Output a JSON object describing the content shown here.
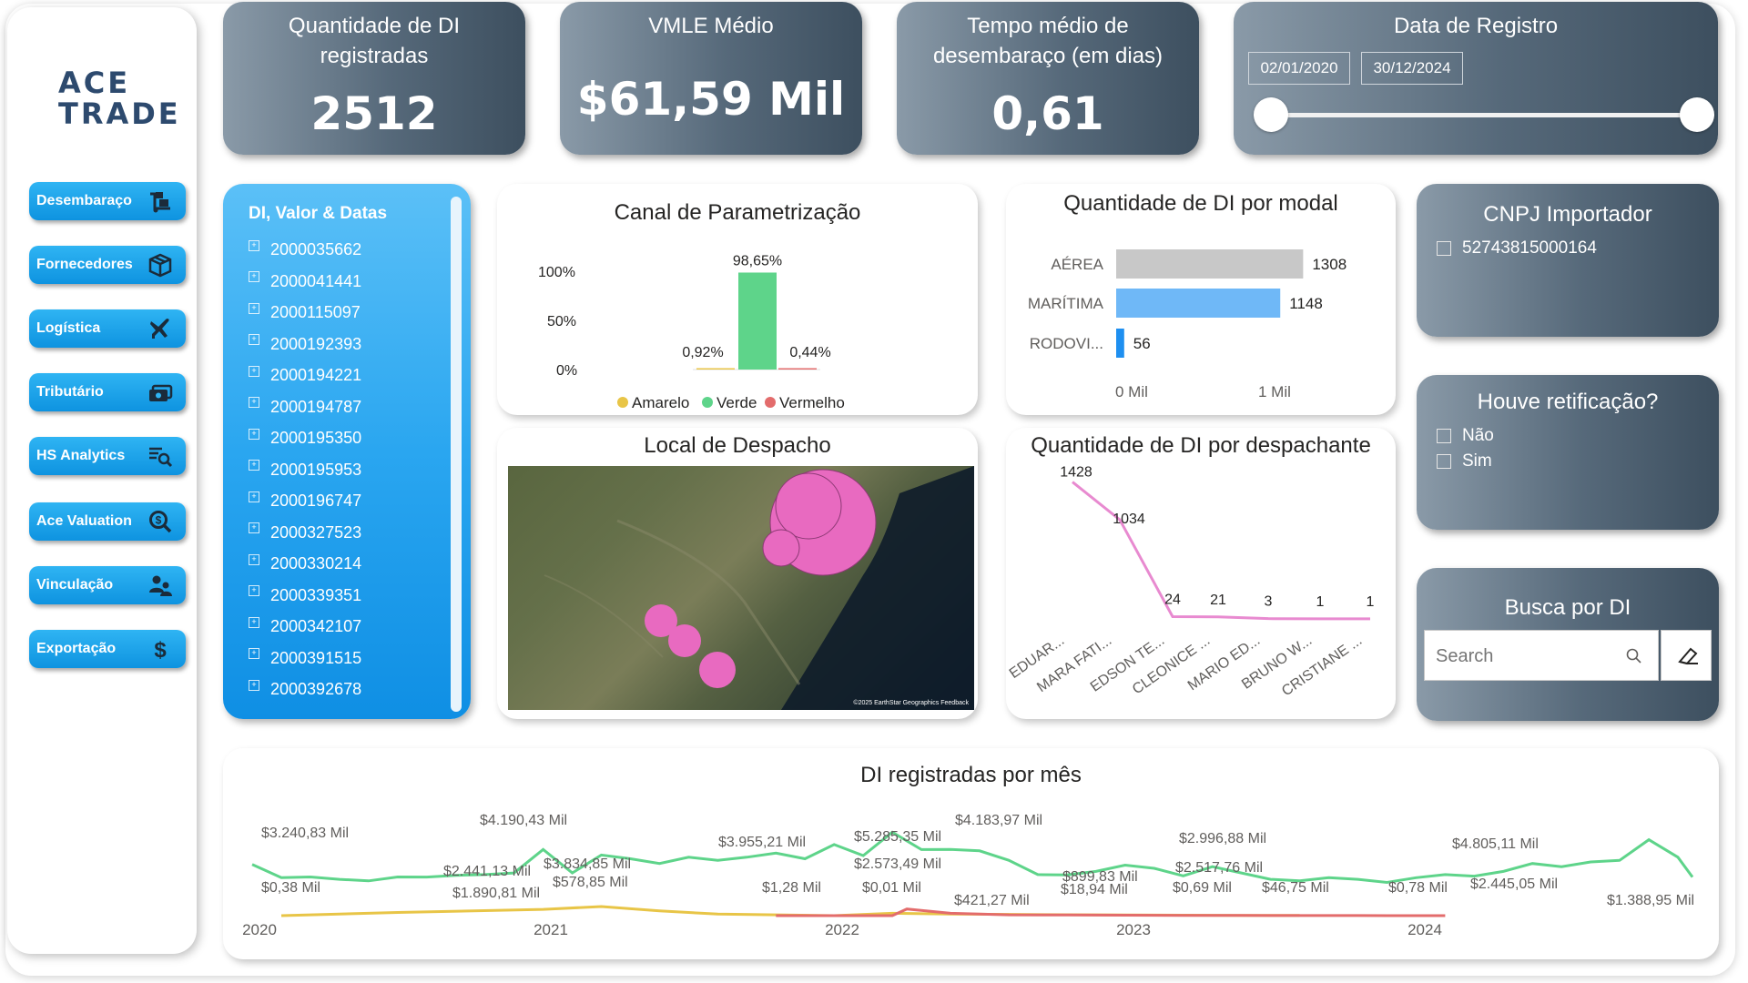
{
  "logo": {
    "line1": "ACE",
    "line2": "TRADE"
  },
  "nav": [
    {
      "label": "Desembaraço",
      "icon": "boxes-dolly-icon"
    },
    {
      "label": "Fornecedores",
      "icon": "package-icon"
    },
    {
      "label": "Logística",
      "icon": "airplane-icon"
    },
    {
      "label": "Tributário",
      "icon": "money-bill-icon"
    },
    {
      "label": "HS Analytics",
      "icon": "list-search-icon"
    },
    {
      "label": "Ace Valuation",
      "icon": "magnifier-dollar-icon"
    },
    {
      "label": "Vinculação",
      "icon": "users-icon"
    },
    {
      "label": "Exportação",
      "icon": "dollar-icon"
    }
  ],
  "kpis": {
    "qty_title_1": "Quantidade de DI",
    "qty_title_2": "registradas",
    "qty_value": "2512",
    "vmle_title": "VMLE Médio",
    "vmle_value": "$61,59 Mil",
    "tempo_title_1": "Tempo médio de",
    "tempo_title_2": "desembaraço (em dias)",
    "tempo_value": "0,61"
  },
  "date_slicer": {
    "title": "Data de Registro",
    "start": "02/01/2020",
    "end": "30/12/2024"
  },
  "di_list": {
    "header": "DI, Valor & Datas",
    "items": [
      "2000035662",
      "2000041441",
      "2000115097",
      "2000192393",
      "2000194221",
      "2000194787",
      "2000195350",
      "2000195953",
      "2000196747",
      "2000327523",
      "2000330214",
      "2000339351",
      "2000342107",
      "2000391515",
      "2000392678"
    ]
  },
  "canal": {
    "title": "Canal de Parametrização",
    "ytick_labels": [
      "100%",
      "50%",
      "0%"
    ],
    "bar_labels": [
      "0,92%",
      "98,65%",
      "0,44%"
    ],
    "legend": [
      "Amarelo",
      "Verde",
      "Vermelho"
    ]
  },
  "modal": {
    "title": "Quantidade de DI por modal",
    "categories": [
      "AÉREA",
      "MARÍTIMA",
      "RODOVI..."
    ],
    "value_labels": [
      "1308",
      "1148",
      "56"
    ],
    "xtick_labels": [
      "0 Mil",
      "1 Mil"
    ]
  },
  "local": {
    "title": "Local de Despacho",
    "attribution": "©2025 EarthStar Geographics  Feedback"
  },
  "despachante": {
    "title": "Quantidade de DI por despachante",
    "categories": [
      "EDUAR...",
      "MARA FATI...",
      "EDSON TE...",
      "CLEONICE ...",
      "MARIO ED...",
      "BRUNO W...",
      "CRISTIANE ..."
    ],
    "value_labels": [
      "1428",
      "1034",
      "24",
      "21",
      "3",
      "1",
      "1"
    ]
  },
  "cnpj": {
    "title": "CNPJ Importador",
    "options": [
      "52743815000164"
    ]
  },
  "retificacao": {
    "title": "Houve retificação?",
    "options": [
      "Não",
      "Sim"
    ]
  },
  "busca": {
    "title": "Busca por DI",
    "placeholder": "Search"
  },
  "monthly": {
    "title": "DI registradas por mês",
    "xtick_labels": [
      "2020",
      "2021",
      "2022",
      "2023",
      "2024"
    ],
    "annotations": [
      "$3.240,83 Mil",
      "$0,38 Mil",
      "$2.441,13 Mil",
      "$1.890,81 Mil",
      "$4.190,43 Mil",
      "$3.834,85 Mil",
      "$578,85 Mil",
      "$3.955,21 Mil",
      "$1,28 Mil",
      "$5.285,35 Mil",
      "$2.573,49 Mil",
      "$0,01 Mil",
      "$4.183,97 Mil",
      "$421,27 Mil",
      "$899,83 Mil",
      "$18,94 Mil",
      "$2.996,88 Mil",
      "$2.517,76 Mil",
      "$0,69 Mil",
      "$46,75 Mil",
      "$0,78 Mil",
      "$4.805,11 Mil",
      "$2.445,05 Mil",
      "$1.388,95 Mil"
    ]
  },
  "chart_data": [
    {
      "type": "bar",
      "title": "Canal de Parametrização",
      "categories": [
        "Amarelo",
        "Verde",
        "Vermelho"
      ],
      "values": [
        0.92,
        98.65,
        0.44
      ],
      "ylim": [
        0,
        100
      ],
      "colors": [
        "#E8C547",
        "#5ED48A",
        "#E36C6C"
      ]
    },
    {
      "type": "bar",
      "orientation": "horizontal",
      "title": "Quantidade de DI por modal",
      "categories": [
        "AÉREA",
        "MARÍTIMA",
        "RODOVI..."
      ],
      "values": [
        1308,
        1148,
        56
      ],
      "xlim": [
        0,
        1500
      ],
      "colors": [
        "#C8C8C8",
        "#6FB8F7",
        "#1E8FF0"
      ]
    },
    {
      "type": "line",
      "title": "Quantidade de DI por despachante",
      "categories": [
        "EDUAR...",
        "MARA FATI...",
        "EDSON TE...",
        "CLEONICE ...",
        "MARIO ED...",
        "BRUNO W...",
        "CRISTIANE ..."
      ],
      "values": [
        1428,
        1034,
        24,
        21,
        3,
        1,
        1
      ],
      "color": "#E88AD0"
    },
    {
      "type": "line",
      "title": "DI registradas por mês",
      "x_ticks": [
        "2020",
        "2021",
        "2022",
        "2023",
        "2024"
      ],
      "unit": "Mil",
      "series": [
        {
          "name": "Verde",
          "color": "#5ED48A",
          "x": [
            2020.0,
            2020.1,
            2020.2,
            2020.3,
            2020.4,
            2020.5,
            2020.6,
            2020.7,
            2020.8,
            2020.9,
            2021.0,
            2021.1,
            2021.2,
            2021.3,
            2021.4,
            2021.5,
            2021.6,
            2021.7,
            2021.8,
            2021.9,
            2022.0,
            2022.1,
            2022.2,
            2022.3,
            2022.4,
            2022.5,
            2022.6,
            2022.7,
            2022.8,
            2022.9,
            2023.0,
            2023.1,
            2023.2,
            2023.3,
            2023.4,
            2023.5,
            2023.6,
            2023.7,
            2023.8,
            2023.9,
            2024.0,
            2024.1,
            2024.2,
            2024.3,
            2024.4,
            2024.5,
            2024.6,
            2024.7,
            2024.8,
            2024.9,
            2024.95
          ],
          "values": [
            3240,
            2400,
            2450,
            2300,
            2200,
            2450,
            2441,
            2550,
            2600,
            2700,
            4190,
            2700,
            3834,
            3600,
            3300,
            3700,
            3500,
            3700,
            3955,
            3600,
            4500,
            3800,
            5285,
            4183,
            4190,
            4100,
            3500,
            2600,
            2573,
            2800,
            3200,
            2996,
            2517,
            3100,
            2700,
            2300,
            2200,
            2400,
            2300,
            2100,
            2400,
            2600,
            2500,
            2800,
            3300,
            3100,
            3400,
            3500,
            4805,
            3700,
            2445
          ]
        },
        {
          "name": "Amarelo",
          "color": "#E8C547",
          "x": [
            2020.1,
            2020.5,
            2021.0,
            2021.2,
            2021.4,
            2021.6,
            2021.8,
            2022.0,
            2022.2,
            2022.4,
            2022.6,
            2022.8,
            2023.0,
            2023.2,
            2023.4,
            2023.6
          ],
          "values": [
            0.38,
            200,
            400,
            578.85,
            300,
            100,
            50,
            1.28,
            150,
            100,
            80,
            60,
            40,
            30,
            20,
            10
          ]
        },
        {
          "name": "Vermelho",
          "color": "#E36C6C",
          "x": [
            2021.8,
            2022.0,
            2022.2,
            2022.25,
            2022.4,
            2022.6,
            2022.8,
            2023.0,
            2023.2,
            2023.4,
            2023.6,
            2023.8,
            2024.0,
            2024.1
          ],
          "values": [
            0,
            0,
            0.01,
            421.27,
            150,
            50,
            40,
            30,
            20,
            10,
            5,
            3,
            2,
            0
          ]
        }
      ]
    }
  ]
}
